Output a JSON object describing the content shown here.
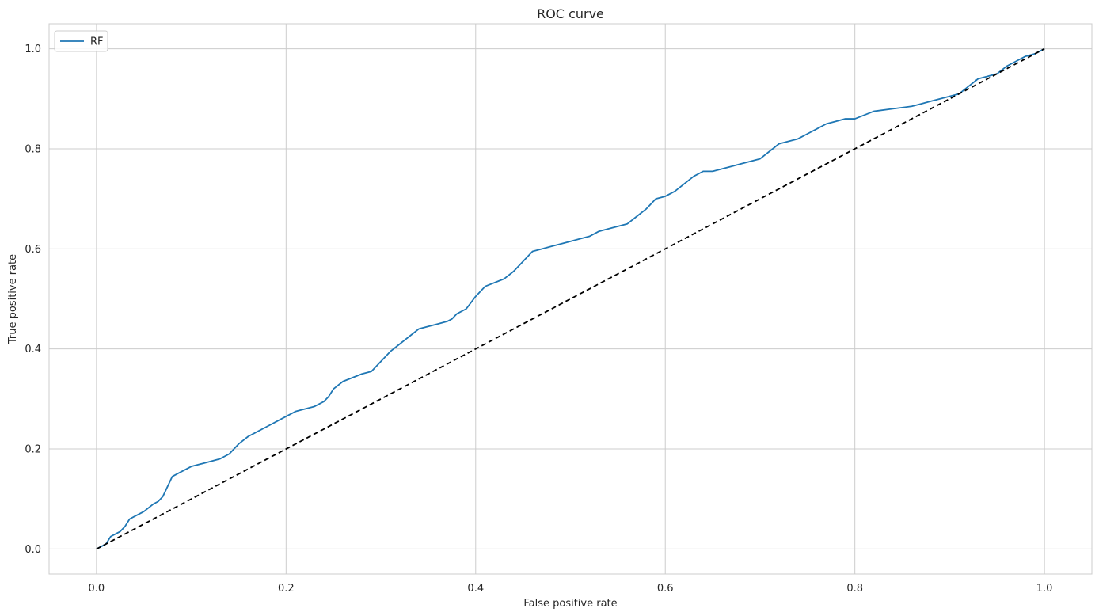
{
  "chart_data": {
    "type": "line",
    "title": "ROC curve",
    "xlabel": "False positive rate",
    "ylabel": "True positive rate",
    "xlim": [
      -0.05,
      1.05
    ],
    "ylim": [
      -0.05,
      1.05
    ],
    "xticks": [
      0.0,
      0.2,
      0.4,
      0.6,
      0.8,
      1.0
    ],
    "yticks": [
      0.0,
      0.2,
      0.4,
      0.6,
      0.8,
      1.0
    ],
    "xtick_labels": [
      "0.0",
      "0.2",
      "0.4",
      "0.6",
      "0.8",
      "1.0"
    ],
    "ytick_labels": [
      "0.0",
      "0.2",
      "0.4",
      "0.6",
      "0.8",
      "1.0"
    ],
    "grid": true,
    "legend": {
      "position": "top-left",
      "entries": [
        "RF"
      ]
    },
    "series": [
      {
        "name": "RF",
        "color": "#1f77b4",
        "style": "solid",
        "x": [
          0.0,
          0.01,
          0.015,
          0.02,
          0.025,
          0.03,
          0.035,
          0.04,
          0.05,
          0.06,
          0.065,
          0.07,
          0.075,
          0.08,
          0.09,
          0.1,
          0.11,
          0.12,
          0.13,
          0.14,
          0.15,
          0.16,
          0.17,
          0.18,
          0.19,
          0.2,
          0.21,
          0.22,
          0.23,
          0.24,
          0.245,
          0.25,
          0.26,
          0.28,
          0.29,
          0.3,
          0.31,
          0.32,
          0.33,
          0.34,
          0.35,
          0.36,
          0.37,
          0.375,
          0.38,
          0.39,
          0.4,
          0.41,
          0.43,
          0.44,
          0.45,
          0.46,
          0.47,
          0.48,
          0.49,
          0.5,
          0.51,
          0.52,
          0.53,
          0.54,
          0.55,
          0.56,
          0.57,
          0.58,
          0.59,
          0.6,
          0.61,
          0.62,
          0.63,
          0.64,
          0.65,
          0.66,
          0.67,
          0.68,
          0.69,
          0.7,
          0.71,
          0.72,
          0.73,
          0.74,
          0.75,
          0.76,
          0.77,
          0.78,
          0.79,
          0.8,
          0.82,
          0.84,
          0.86,
          0.87,
          0.88,
          0.89,
          0.9,
          0.91,
          0.92,
          0.93,
          0.94,
          0.95,
          0.96,
          0.97,
          0.98,
          0.99,
          1.0
        ],
        "y": [
          0.0,
          0.01,
          0.025,
          0.03,
          0.035,
          0.045,
          0.06,
          0.065,
          0.075,
          0.09,
          0.095,
          0.105,
          0.125,
          0.145,
          0.155,
          0.165,
          0.17,
          0.175,
          0.18,
          0.19,
          0.21,
          0.225,
          0.235,
          0.245,
          0.255,
          0.265,
          0.275,
          0.28,
          0.285,
          0.295,
          0.305,
          0.32,
          0.335,
          0.35,
          0.355,
          0.375,
          0.395,
          0.41,
          0.425,
          0.44,
          0.445,
          0.45,
          0.455,
          0.46,
          0.47,
          0.48,
          0.505,
          0.525,
          0.54,
          0.555,
          0.575,
          0.595,
          0.6,
          0.605,
          0.61,
          0.615,
          0.62,
          0.625,
          0.635,
          0.64,
          0.645,
          0.65,
          0.665,
          0.68,
          0.7,
          0.705,
          0.715,
          0.73,
          0.745,
          0.755,
          0.755,
          0.76,
          0.765,
          0.77,
          0.775,
          0.78,
          0.795,
          0.81,
          0.815,
          0.82,
          0.83,
          0.84,
          0.85,
          0.855,
          0.86,
          0.86,
          0.875,
          0.88,
          0.885,
          0.89,
          0.895,
          0.9,
          0.905,
          0.91,
          0.925,
          0.94,
          0.945,
          0.95,
          0.965,
          0.975,
          0.985,
          0.99,
          1.0
        ]
      },
      {
        "name": "",
        "color": "#000000",
        "style": "dashed",
        "x": [
          0.0,
          1.0
        ],
        "y": [
          0.0,
          1.0
        ]
      }
    ]
  }
}
